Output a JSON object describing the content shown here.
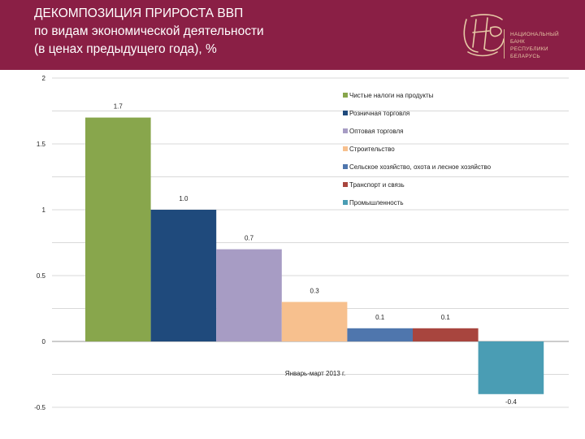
{
  "header": {
    "title_lines": [
      "ДЕКОМПОЗИЦИЯ ПРИРОСТА ВВП",
      "по видам экономической деятельности",
      "(в ценах предыдущего года), %"
    ],
    "bank_lines": [
      "НАЦИОНАЛЬНЫЙ",
      "БАНК",
      "РЕСПУБЛИКИ",
      "БЕЛАРУСЬ"
    ]
  },
  "colors": {
    "header_bg": "#8a1f45",
    "header_text": "#ffffff",
    "logo": "#e7c9a6"
  },
  "icons": {
    "logo": "nbrb-monogram-icon"
  },
  "chart_data": {
    "type": "bar",
    "categories": [
      "Январь-март 2013 г."
    ],
    "series": [
      {
        "name": "Чистые налоги на продукты",
        "values": [
          1.7
        ],
        "label": "1.7",
        "color": "#88a64c"
      },
      {
        "name": "Розничная торговля",
        "values": [
          1.0
        ],
        "label": "1.0",
        "color": "#1f4a7c"
      },
      {
        "name": "Оптовая торговля",
        "values": [
          0.7
        ],
        "label": "0.7",
        "color": "#a79cc4"
      },
      {
        "name": "Строительство",
        "values": [
          0.3
        ],
        "label": "0.3",
        "color": "#f7c08e"
      },
      {
        "name": "Сельское хозяйство, охота и лесное хозяйство",
        "values": [
          0.1
        ],
        "label": "0.1",
        "color": "#4f76ad"
      },
      {
        "name": "Транспорт и связь",
        "values": [
          0.1
        ],
        "label": "0.1",
        "color": "#a8453e"
      },
      {
        "name": "Промышленность",
        "values": [
          -0.4
        ],
        "label": "-0.4",
        "color": "#4a9db4"
      }
    ],
    "y_ticks": [
      "2",
      "1.5",
      "1",
      "0.5",
      "0",
      "-0.5"
    ],
    "ylim": [
      -0.5,
      2
    ],
    "grid": true,
    "legend": "top-right"
  }
}
